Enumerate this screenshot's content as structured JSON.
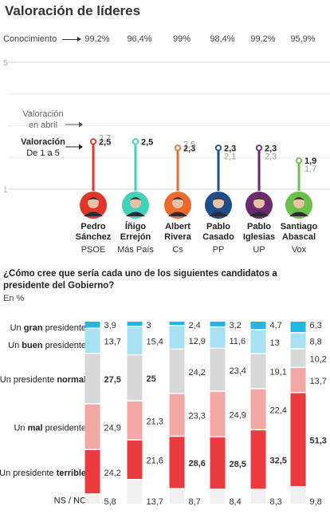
{
  "title": "Valoración de líderes",
  "conocimiento_label": "Conocimiento",
  "valoracion_abril_label": [
    "Valoración",
    "en abril"
  ],
  "valoracion_label": [
    "Valoración",
    "De 1 a 5"
  ],
  "question_title": "¿Cómo cree que sería cada uno de los siguientes candidatos a presidente del Gobierno?",
  "question_unit": "En %",
  "colors": {
    "PSOE": "#e2362b",
    "Más País": "#3fd3b9",
    "Cs": "#ee6a2c",
    "PP": "#1d4e8a",
    "UP": "#6a2b6e",
    "Vox": "#6cbf4b",
    "gran": "#1fb7e3",
    "buen": "#a7e2f4",
    "normal": "#d8d8d8",
    "mal": "#f4a8a6",
    "terrible": "#ec3b3e",
    "nsnc": "#f0f0f0"
  },
  "leaders": [
    {
      "name": [
        "Pedro",
        "Sánchez"
      ],
      "party": "PSOE",
      "conocimiento": "99,2%",
      "now_label": "2,5",
      "prev_label": "2,7"
    },
    {
      "name": [
        "Íñigo",
        "Errejón"
      ],
      "party": "Más País",
      "conocimiento": "96,4%",
      "now_label": "2,5",
      "prev_label": ""
    },
    {
      "name": [
        "Albert",
        "Rivera"
      ],
      "party": "Cs",
      "conocimiento": "99%",
      "now_label": "2,3",
      "prev_label": "2,5"
    },
    {
      "name": [
        "Pablo",
        "Casado"
      ],
      "party": "PP",
      "conocimiento": "98,4%",
      "now_label": "2,3",
      "prev_label": "2,1"
    },
    {
      "name": [
        "Pablo",
        "Iglesias"
      ],
      "party": "UP",
      "conocimiento": "99,2%",
      "now_label": "2,3",
      "prev_label": "2,3"
    },
    {
      "name": [
        "Santiago",
        "Abascal"
      ],
      "party": "Vox",
      "conocimiento": "95,9%",
      "now_label": "1,9",
      "prev_label": "1,7"
    }
  ],
  "categories": [
    {
      "key": "gran",
      "pre": "Un ",
      "bold": "gran",
      "post": " presidente"
    },
    {
      "key": "buen",
      "pre": "Un ",
      "bold": "buen",
      "post": " presidente"
    },
    {
      "key": "normal",
      "pre": "Un presidente ",
      "bold": "normal",
      "post": ""
    },
    {
      "key": "mal",
      "pre": "Un ",
      "bold": "mal",
      "post": " presidente"
    },
    {
      "key": "terrible",
      "pre": "Un presidente ",
      "bold": "terrible",
      "post": ""
    },
    {
      "key": "nsnc",
      "pre": "NS / NC",
      "bold": "",
      "post": ""
    }
  ],
  "chart_data": [
    {
      "type": "line",
      "title": "Valoración de líderes",
      "ylabel": "Valoración De 1 a 5",
      "ylim": [
        1,
        5
      ],
      "yticks": [
        "1",
        "5"
      ],
      "categories": [
        "PSOE",
        "Más País",
        "Cs",
        "PP",
        "UP",
        "Vox"
      ],
      "series": [
        {
          "name": "Valoración De 1 a 5",
          "values": [
            2.5,
            2.5,
            2.3,
            2.3,
            2.3,
            1.9
          ]
        },
        {
          "name": "Valoración en abril",
          "values": [
            2.7,
            null,
            2.5,
            2.1,
            2.3,
            1.7
          ]
        }
      ]
    },
    {
      "type": "bar",
      "stacked": true,
      "title": "¿Cómo cree que sería cada uno de los siguientes candidatos a presidente del Gobierno?",
      "ylabel": "En %",
      "categories": [
        "PSOE",
        "Más País",
        "Cs",
        "PP",
        "UP",
        "Vox"
      ],
      "series": [
        {
          "name": "Un gran presidente",
          "values": [
            3.9,
            3,
            2.4,
            3.2,
            4.7,
            6.3
          ],
          "labels": [
            "3,9",
            "3",
            "2,4",
            "3,2",
            "4,7",
            "6,3"
          ]
        },
        {
          "name": "Un buen presidente",
          "values": [
            13.7,
            15.4,
            12.9,
            11.6,
            13,
            8.8
          ],
          "labels": [
            "13,7",
            "15,4",
            "12,9",
            "11,6",
            "13",
            "8,8"
          ]
        },
        {
          "name": "Un presidente normal",
          "values": [
            27.5,
            25,
            24.2,
            23.4,
            19.1,
            10.2
          ],
          "labels": [
            "27,5",
            "25",
            "24,2",
            "23,4",
            "19,1",
            "10,2"
          ]
        },
        {
          "name": "Un mal presidente",
          "values": [
            24.9,
            21.3,
            23.3,
            24.9,
            22.4,
            13.7
          ],
          "labels": [
            "24,9",
            "21,3",
            "23,3",
            "24,9",
            "22,4",
            "13,7"
          ]
        },
        {
          "name": "Un presidente terrible",
          "values": [
            24.2,
            21.6,
            28.6,
            28.5,
            32.5,
            51.3
          ],
          "labels": [
            "24,2",
            "21,6",
            "28,6",
            "28,5",
            "32,5",
            "51,3"
          ]
        },
        {
          "name": "NS / NC",
          "values": [
            5.8,
            13.7,
            8.7,
            8.4,
            8.3,
            9.8
          ],
          "labels": [
            "5,8",
            "13,7",
            "8,7",
            "8,4",
            "8,3",
            "9,8"
          ]
        }
      ]
    }
  ]
}
